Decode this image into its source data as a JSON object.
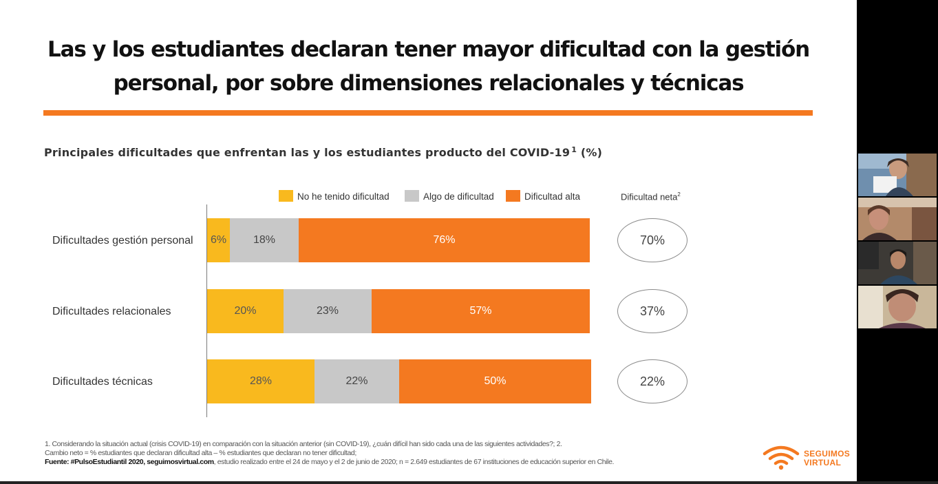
{
  "slide": {
    "title_line1": "Las y los estudiantes declaran tener mayor dificultad con la gestión",
    "title_line2": "personal, por sobre dimensiones relacionales y técnicas",
    "subtitle": "Principales dificultades que enfrentan las y los estudiantes producto del COVID-19",
    "subtitle_sup": "1",
    "subtitle_suffix": "(%)",
    "accent_color": "#f47920",
    "legend": [
      {
        "label": "No he tenido dificultad",
        "color": "#f9b91e"
      },
      {
        "label": "Algo de dificultad",
        "color": "#c8c8c8"
      },
      {
        "label": "Dificultad alta",
        "color": "#f47920"
      }
    ],
    "net_header": "Dificultad neta",
    "net_header_sup": "2",
    "footnote_1": "1. Considerando la situación actual (crisis COVID-19) en comparación con la situación anterior (sin COVID-19), ¿cuán difícil han sido cada una de las siguientes actividades?; 2.",
    "footnote_2": "Cambio neto = % estudiantes que declaran dificultad alta – % estudiantes que declaran no tener dificultad;",
    "source_bold": "Fuente: #PulsoEstudiantil 2020, seguimosvirtual.com",
    "source_rest": ", estudio realizado entre el 24 de mayo y el 2 de junio de 2020; n = 2.649 estudiantes de 67 instituciones de educación superior en Chile.",
    "logo_line1": "SEGUIMOS",
    "logo_line2": "VIRTUAL",
    "logo_icon": "wifi-icon"
  },
  "chart_data": {
    "type": "bar",
    "orientation": "horizontal",
    "stacked": true,
    "categories": [
      "Dificultades gestión personal",
      "Dificultades relacionales",
      "Dificultades técnicas"
    ],
    "series": [
      {
        "name": "No he tenido dificultad",
        "values": [
          6,
          20,
          28
        ],
        "labels": [
          "6%",
          "20%",
          "28%"
        ],
        "color": "#f9b91e"
      },
      {
        "name": "Algo de dificultad",
        "values": [
          18,
          23,
          22
        ],
        "labels": [
          "18%",
          "23%",
          "22%"
        ],
        "color": "#c8c8c8"
      },
      {
        "name": "Dificultad alta",
        "values": [
          76,
          57,
          50
        ],
        "labels": [
          "76%",
          "57%",
          "50%"
        ],
        "color": "#f47920"
      }
    ],
    "net": {
      "name": "Dificultad neta",
      "values": [
        70,
        37,
        22
      ],
      "labels": [
        "70%",
        "37%",
        "22%"
      ]
    },
    "xlim": [
      0,
      100
    ],
    "legend_position": "top"
  },
  "video_call": {
    "participant_count": 4
  }
}
